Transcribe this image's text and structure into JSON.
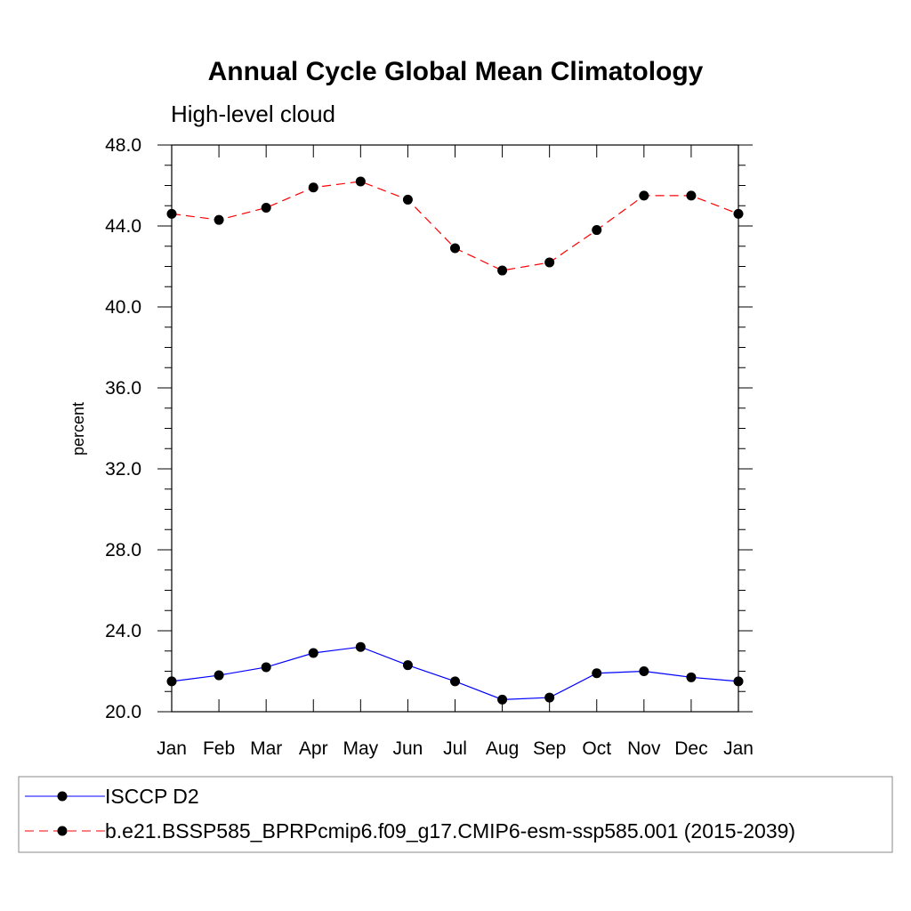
{
  "chart_data": {
    "type": "line",
    "title": "Annual Cycle Global Mean Climatology",
    "subtitle": "High-level cloud",
    "xlabel": "",
    "ylabel": "percent",
    "categories": [
      "Jan",
      "Feb",
      "Mar",
      "Apr",
      "May",
      "Jun",
      "Jul",
      "Aug",
      "Sep",
      "Oct",
      "Nov",
      "Dec",
      "Jan"
    ],
    "ylim": [
      20.0,
      48.0
    ],
    "yticks": [
      "20.0",
      "24.0",
      "28.0",
      "32.0",
      "36.0",
      "40.0",
      "44.0",
      "48.0"
    ],
    "ytick_values": [
      20,
      24,
      28,
      32,
      36,
      40,
      44,
      48
    ],
    "grid": false,
    "legend_position": "bottom",
    "series": [
      {
        "name": "ISCCP D2",
        "color": "#0000ff",
        "dash": "solid",
        "marker": "circle",
        "values": [
          21.5,
          21.8,
          22.2,
          22.9,
          23.2,
          22.3,
          21.5,
          20.6,
          20.7,
          21.9,
          22.0,
          21.7,
          21.5
        ]
      },
      {
        "name": "b.e21.BSSP585_BPRPcmip6.f09_g17.CMIP6-esm-ssp585.001 (2015-2039)",
        "color": "#ff0000",
        "dash": "dashed",
        "marker": "circle",
        "values": [
          44.6,
          44.3,
          44.9,
          45.9,
          46.2,
          45.3,
          42.9,
          41.8,
          42.2,
          43.8,
          45.5,
          45.5,
          44.6
        ]
      }
    ]
  }
}
